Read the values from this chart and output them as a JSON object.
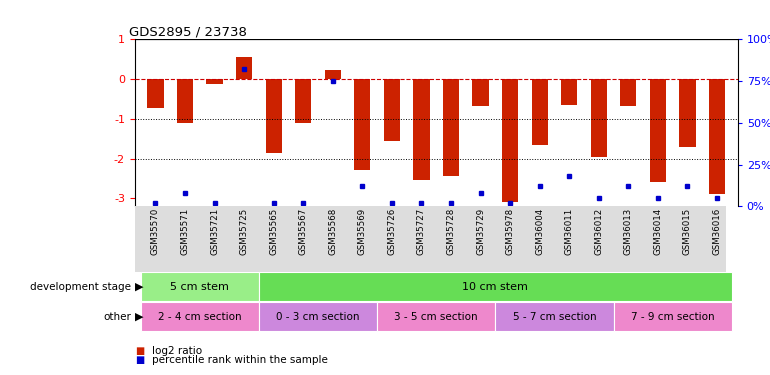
{
  "title": "GDS2895 / 23738",
  "samples": [
    "GSM35570",
    "GSM35571",
    "GSM35721",
    "GSM35725",
    "GSM35565",
    "GSM35567",
    "GSM35568",
    "GSM35569",
    "GSM35726",
    "GSM35727",
    "GSM35728",
    "GSM35729",
    "GSM35978",
    "GSM36004",
    "GSM36011",
    "GSM36012",
    "GSM36013",
    "GSM36014",
    "GSM36015",
    "GSM36016"
  ],
  "log2_ratio": [
    -0.72,
    -1.1,
    -0.12,
    0.55,
    -1.85,
    -1.1,
    0.22,
    -2.3,
    -1.55,
    -2.55,
    -2.45,
    -0.68,
    -3.1,
    -1.65,
    -0.65,
    -1.95,
    -0.68,
    -2.6,
    -1.7,
    -2.9
  ],
  "percentile": [
    2,
    8,
    2,
    82,
    2,
    2,
    75,
    12,
    2,
    2,
    2,
    8,
    2,
    12,
    18,
    5,
    12,
    5,
    12,
    5
  ],
  "bar_color": "#cc2200",
  "dot_color": "#0000cc",
  "dashed_color": "#cc0000",
  "ylim_left": [
    -3.2,
    1.0
  ],
  "yticks_left": [
    -3,
    -2,
    -1,
    0,
    1
  ],
  "ytick_labels_right": [
    "0%",
    "25%",
    "50%",
    "75%",
    "100%"
  ],
  "yticks_right_vals": [
    0,
    25,
    50,
    75,
    100
  ],
  "dev_stage_groups": [
    {
      "label": "5 cm stem",
      "start": 0,
      "end": 3,
      "color": "#99ee88"
    },
    {
      "label": "10 cm stem",
      "start": 4,
      "end": 19,
      "color": "#66dd55"
    }
  ],
  "other_groups": [
    {
      "label": "2 - 4 cm section",
      "start": 0,
      "end": 3,
      "color": "#ee88cc"
    },
    {
      "label": "0 - 3 cm section",
      "start": 4,
      "end": 7,
      "color": "#cc88dd"
    },
    {
      "label": "3 - 5 cm section",
      "start": 8,
      "end": 11,
      "color": "#ee88cc"
    },
    {
      "label": "5 - 7 cm section",
      "start": 12,
      "end": 15,
      "color": "#cc88dd"
    },
    {
      "label": "7 - 9 cm section",
      "start": 16,
      "end": 19,
      "color": "#ee88cc"
    }
  ],
  "legend_items": [
    {
      "label": "log2 ratio",
      "color": "#cc2200"
    },
    {
      "label": "percentile rank within the sample",
      "color": "#0000cc"
    }
  ],
  "bar_width": 0.55,
  "xtick_bg": "#dddddd"
}
